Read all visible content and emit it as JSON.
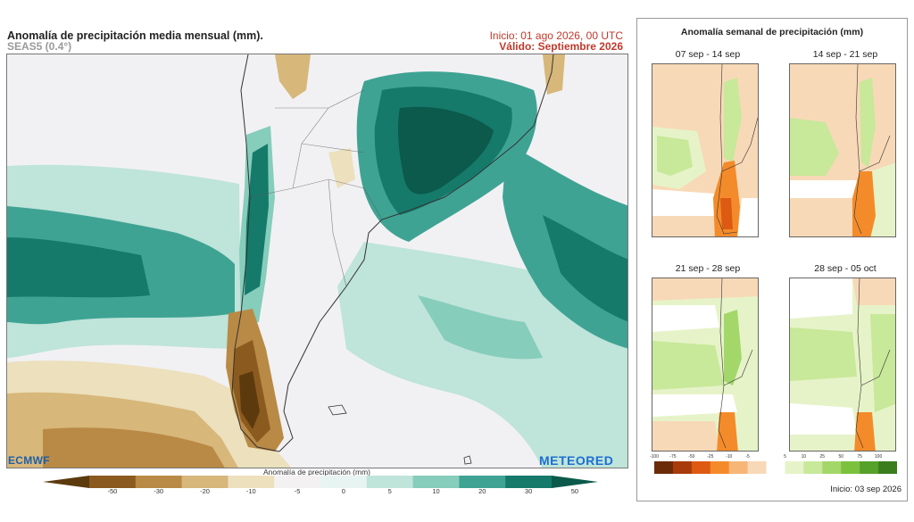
{
  "header": {
    "title": "Anomalía de precipitación media mensual (mm).",
    "model": "SEAS5 (0.4°)",
    "init": "Inicio: 01 ago 2026, 00 UTC",
    "valid": "Válido: Septiembre 2026"
  },
  "logos": {
    "left": "ECMWF",
    "right": "METEORED"
  },
  "main_colorbar": {
    "title": "Anomalía de precipitación (mm)",
    "labels": [
      "-50",
      "-30",
      "-20",
      "-10",
      "-5",
      "0",
      "5",
      "10",
      "20",
      "30",
      "50"
    ],
    "colors": [
      "#5c3a0e",
      "#8b5a1f",
      "#b98a45",
      "#d7b77a",
      "#ece0bd",
      "#f3f1f1",
      "#e8f4f1",
      "#bfe4da",
      "#86cdbb",
      "#3fa394",
      "#167a6b",
      "#0b5a4c"
    ]
  },
  "side_panel": {
    "title": "Anomalía semanal de precipitación (mm)",
    "panels": [
      {
        "label": "07 sep - 14 sep"
      },
      {
        "label": "14 sep - 21 sep"
      },
      {
        "label": "21 sep - 28 sep"
      },
      {
        "label": "28 sep - 05 oct"
      }
    ],
    "colorbar": {
      "labels": [
        "-100",
        "-75",
        "-50",
        "-25",
        "-10",
        "-5",
        "5",
        "10",
        "25",
        "50",
        "75",
        "100"
      ],
      "colors": [
        "#6b2b08",
        "#a73b0b",
        "#dd5a12",
        "#f48b2a",
        "#f7b676",
        "#f8d9b7",
        "#ffffff",
        "#e6f3c8",
        "#c8e89a",
        "#a4d76a",
        "#7cc13e",
        "#56a12a",
        "#3b7d1d"
      ]
    },
    "init": "Inicio: 03 sep 2026"
  }
}
